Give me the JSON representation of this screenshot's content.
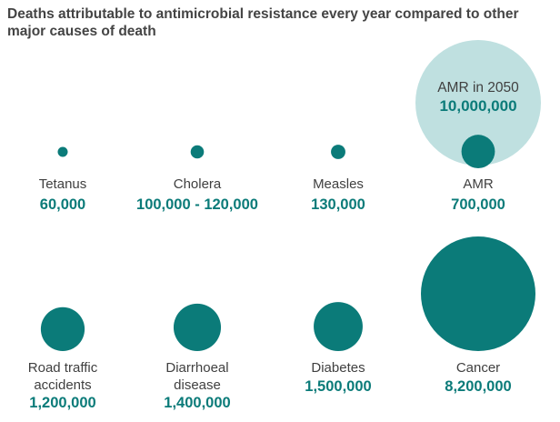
{
  "chart_data": {
    "type": "bubble",
    "title": "Deaths attributable to antimicrobial resistance every year compared to other major causes of death",
    "unit": "deaths per year",
    "items": [
      {
        "name": "tetanus",
        "label_lines": [
          "Tetanus"
        ],
        "value_text": "60,000",
        "value": 60000
      },
      {
        "name": "cholera",
        "label_lines": [
          "Cholera"
        ],
        "value_text": "100,000 - 120,000",
        "value": 110000
      },
      {
        "name": "measles",
        "label_lines": [
          "Measles"
        ],
        "value_text": "130,000",
        "value": 130000
      },
      {
        "name": "amr",
        "label_lines": [
          "AMR"
        ],
        "value_text": "700,000",
        "value": 700000
      },
      {
        "name": "road-traffic-accidents",
        "label_lines": [
          "Road traffic",
          "accidents"
        ],
        "value_text": "1,200,000",
        "value": 1200000
      },
      {
        "name": "diarrhoeal-disease",
        "label_lines": [
          "Diarrhoeal",
          "disease"
        ],
        "value_text": "1,400,000",
        "value": 1400000
      },
      {
        "name": "diabetes",
        "label_lines": [
          "Diabetes"
        ],
        "value_text": "1,500,000",
        "value": 1500000
      },
      {
        "name": "cancer",
        "label_lines": [
          "Cancer"
        ],
        "value_text": "8,200,000",
        "value": 8200000
      }
    ],
    "projection": {
      "name": "amr-2050",
      "label": "AMR in 2050",
      "value_text": "10,000,000",
      "value": 10000000,
      "overlaps": "amr"
    },
    "colors": {
      "bubble": "#0b7b79",
      "projection": "#bfe0e0",
      "value_text": "#0b7b79",
      "label_text": "#404040",
      "title_text": "#444444"
    }
  }
}
